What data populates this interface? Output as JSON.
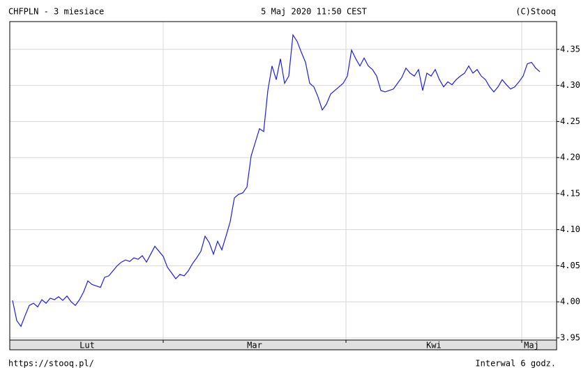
{
  "chart_data": {
    "type": "line",
    "title": "CHFPLN - 3 miesiace",
    "date": "5 Maj 2020 11:50 CEST",
    "copyright": "(C)Stooq",
    "source": "https://stooq.pl/",
    "interval": "Interwal 6 godz.",
    "x": [
      0,
      1,
      2,
      3,
      4,
      5,
      6,
      7,
      8,
      9,
      10,
      11,
      12,
      13,
      14,
      15,
      16,
      17,
      18,
      19,
      20,
      21,
      22,
      23,
      24,
      25,
      26,
      27,
      28,
      29,
      30,
      31,
      32,
      33,
      34,
      35,
      36,
      37,
      38,
      39,
      40,
      41,
      42,
      43,
      44,
      45,
      46,
      47,
      48,
      49,
      50,
      51,
      52,
      53,
      54,
      55,
      56,
      57,
      58,
      59,
      60,
      61,
      62,
      63,
      64,
      65,
      66,
      67,
      68,
      69,
      70,
      71,
      72,
      73,
      74,
      75,
      76,
      77,
      78,
      79,
      80,
      81,
      82,
      83,
      84,
      85,
      86,
      87,
      88,
      89,
      90,
      91,
      92,
      93,
      94,
      95,
      96,
      97,
      98,
      99,
      100,
      101,
      102,
      103,
      104,
      105,
      106,
      107,
      108,
      109,
      110,
      111,
      112,
      113,
      114,
      115,
      116,
      117,
      118,
      119,
      120,
      121,
      122,
      123,
      124,
      125,
      126
    ],
    "series": [
      {
        "name": "CHFPLN",
        "color": "#1f1fd6",
        "values": [
          4.002,
          3.974,
          3.966,
          3.981,
          3.995,
          3.998,
          3.993,
          4.003,
          3.998,
          4.005,
          4.003,
          4.007,
          4.002,
          4.008,
          4.0,
          3.995,
          4.003,
          4.014,
          4.029,
          4.024,
          4.022,
          4.02,
          4.034,
          4.036,
          4.043,
          4.05,
          4.055,
          4.058,
          4.056,
          4.061,
          4.059,
          4.064,
          4.055,
          4.066,
          4.077,
          4.07,
          4.063,
          4.048,
          4.04,
          4.032,
          4.038,
          4.036,
          4.043,
          4.053,
          4.061,
          4.07,
          4.091,
          4.082,
          4.066,
          4.084,
          4.072,
          4.091,
          4.111,
          4.144,
          4.149,
          4.151,
          4.159,
          4.202,
          4.221,
          4.24,
          4.236,
          4.293,
          4.327,
          4.308,
          4.337,
          4.303,
          4.313,
          4.37,
          4.361,
          4.346,
          4.332,
          4.303,
          4.298,
          4.284,
          4.266,
          4.274,
          4.288,
          4.293,
          4.298,
          4.303,
          4.313,
          4.349,
          4.337,
          4.327,
          4.338,
          4.327,
          4.322,
          4.313,
          4.293,
          4.291,
          4.293,
          4.295,
          4.303,
          4.311,
          4.324,
          4.317,
          4.313,
          4.322,
          4.293,
          4.317,
          4.313,
          4.322,
          4.308,
          4.298,
          4.305,
          4.301,
          4.308,
          4.313,
          4.317,
          4.327,
          4.317,
          4.322,
          4.313,
          4.308,
          4.298,
          4.291,
          4.298,
          4.308,
          4.301,
          4.295,
          4.298,
          4.305,
          4.313,
          4.33,
          4.332,
          4.324,
          4.319
        ]
      }
    ],
    "xlim": [
      -0.667,
      130
    ],
    "xticks": [
      {
        "value": 17.83,
        "label": "Lut"
      },
      {
        "value": 57.83,
        "label": "Mar"
      },
      {
        "value": 100.67,
        "label": "Kwi"
      },
      {
        "value": 124,
        "label": "Maj"
      }
    ],
    "xgrid": [
      36,
      79.67,
      121.67
    ],
    "ylim": [
      3.947,
      4.3885
    ],
    "yticks": [
      3.95,
      {
        "value": 4,
        "label": "4.00"
      },
      4.05,
      {
        "value": 4.1,
        "label": "4.10"
      },
      4.15,
      {
        "value": 4.2,
        "label": "4.20"
      },
      4.25,
      {
        "value": 4.3,
        "label": "4.30"
      },
      4.35
    ],
    "grid": true
  }
}
